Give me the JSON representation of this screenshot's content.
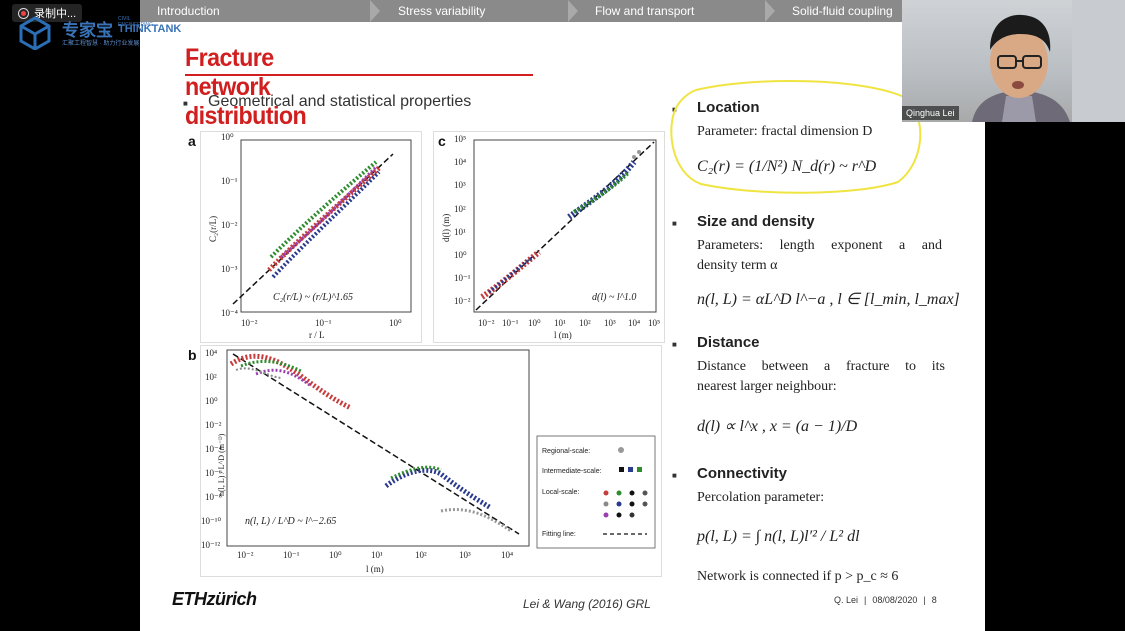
{
  "recording": {
    "label": "录制中..."
  },
  "logo": {
    "cn": "专家宝",
    "en": "THINKTANK",
    "sub_top": "CIVIL ENGINEERING",
    "sub_cn": "汇聚工程智慧 · 助力行业发展"
  },
  "nav": {
    "items": [
      "Introduction",
      "Stress variability",
      "Flow and transport",
      "Solid-fluid coupling"
    ]
  },
  "slide": {
    "title": "Fracture network distribution",
    "subheading": "Geometrical and statistical properties",
    "panels": {
      "a": "a",
      "b": "b",
      "c": "c"
    },
    "sections": {
      "location": {
        "title": "Location",
        "text": "Parameter: fractal dimension D",
        "formula": "C₂(r) = (1/N²) N_d(r) ~ r^D"
      },
      "size": {
        "title": "Size and density",
        "text1": "Parameters: length exponent a and",
        "text2": "density term α",
        "formula": "n(l, L) = αL^D l^−a ,  l ∈ [l_min, l_max]"
      },
      "distance": {
        "title": "Distance",
        "text1": "Distance between a fracture to its",
        "text2": "nearest larger neighbour:",
        "formula": "d(l) ∝ l^x ,  x = (a − 1)/D"
      },
      "connectivity": {
        "title": "Connectivity",
        "text1": "Percolation parameter:",
        "formula": "p(l, L) = ∫ n(l, L)l′² / L² dl",
        "text2": "Network is connected if p > p_c ≈ 6"
      }
    },
    "footer": {
      "logo": "ETHzürich",
      "citation": "Lei & Wang (2016) GRL",
      "author": "Q. Lei",
      "sep": "|",
      "date": "08/08/2020",
      "page": "8"
    }
  },
  "webcam": {
    "name": "Qinghua Lei"
  },
  "charts": {
    "a": {
      "xlabel": "r / L",
      "ylabel": "C₂(r/L)",
      "annotation": "C₂(r/L) ~ (r/L)^1.65",
      "xticks": [
        "10⁻²",
        "10⁻¹",
        "10⁰"
      ],
      "yticks": [
        "10⁰",
        "10⁻¹",
        "10⁻²",
        "10⁻³",
        "10⁻⁴"
      ]
    },
    "c": {
      "xlabel": "l (m)",
      "ylabel": "d(l) (m)",
      "annotation": "d(l) ~ l^1.0",
      "xticks": [
        "10⁻²",
        "10⁻¹",
        "10⁰",
        "10¹",
        "10²",
        "10³",
        "10⁴",
        "10⁵"
      ],
      "yticks": [
        "10⁵",
        "10⁴",
        "10³",
        "10²",
        "10¹",
        "10⁰",
        "10⁻¹",
        "10⁻²"
      ]
    },
    "b": {
      "xlabel": "l (m)",
      "ylabel": "n(l, L) / L^D (m⁻ᴰ)",
      "annotation": "n(l, L) / L^D ~ l^−2.65",
      "xticks": [
        "10⁻²",
        "10⁻¹",
        "10⁰",
        "10¹",
        "10²",
        "10³",
        "10⁴"
      ],
      "yticks": [
        "10⁴",
        "10²",
        "10⁰",
        "10⁻²",
        "10⁻⁴",
        "10⁻⁶",
        "10⁻⁸",
        "10⁻¹⁰",
        "10⁻¹²"
      ],
      "legend": {
        "regional": "Regional-scale:",
        "intermediate": "Intermediate-scale:",
        "local": "Local-scale:",
        "fitting": "Fitting line:"
      }
    }
  },
  "colors": {
    "title": "#d11e1e",
    "annotation_circle": "#f0e443",
    "nav_bg": "#8a8a8a"
  }
}
